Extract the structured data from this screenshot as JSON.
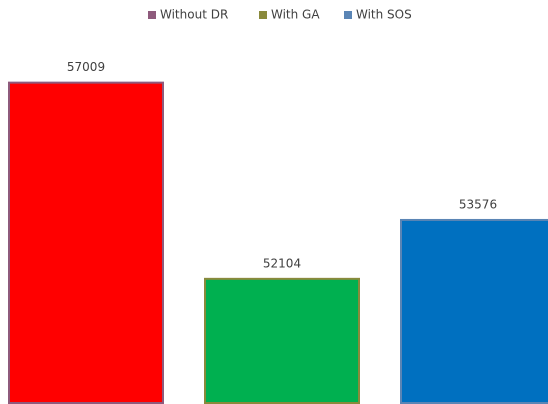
{
  "chart_data": {
    "type": "bar",
    "series": [
      {
        "name": "Without DR",
        "color": "#ff0000",
        "border_color": "#8e5a7c",
        "values": [
          57009
        ]
      },
      {
        "name": "With GA",
        "color": "#00b050",
        "border_color": "#8a8a3c",
        "values": [
          52104
        ]
      },
      {
        "name": "With SOS",
        "color": "#0070c0",
        "border_color": "#5a85b5",
        "values": [
          53576
        ]
      }
    ],
    "ylim": [
      49000,
      59000
    ],
    "legend": "top"
  }
}
